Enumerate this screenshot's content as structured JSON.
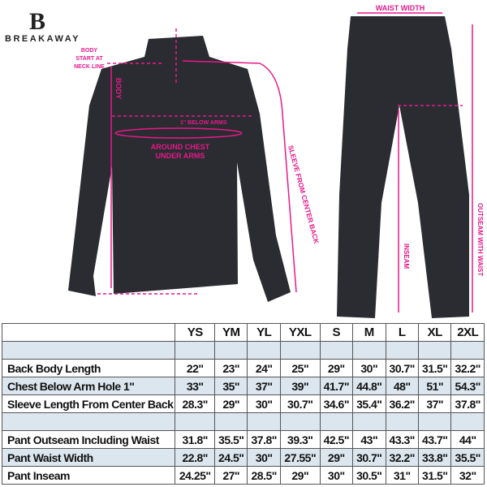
{
  "brand": "BREAKAWAY",
  "colors": {
    "accent": "#e6198a",
    "garment": "#2a2c31",
    "row_tint": "#dbe6ee"
  },
  "annotations": {
    "body_start": [
      "BODY",
      "START AT",
      "NECK LINE"
    ],
    "body": "BODY",
    "below_arms": "1\" BELOW ARMS",
    "chest": [
      "AROUND CHEST",
      "UNDER ARMS"
    ],
    "sleeve": "SLEEVE FROM CENTER BACK",
    "waist": "WAIST WIDTH",
    "inseam": "INSEAM",
    "outseam": "OUTSEAM WITH WAIST"
  },
  "table": {
    "sizes": [
      "YS",
      "YM",
      "YL",
      "YXL",
      "S",
      "M",
      "L",
      "XL",
      "2XL"
    ],
    "rows": [
      {
        "label": "Back Body Length",
        "values": [
          "22\"",
          "23\"",
          "24\"",
          "25\"",
          "29\"",
          "30\"",
          "30.7\"",
          "31.5\"",
          "32.2\""
        ]
      },
      {
        "label": "Chest Below Arm Hole 1\"",
        "values": [
          "33\"",
          "35\"",
          "37\"",
          "39\"",
          "41.7\"",
          "44.8\"",
          "48\"",
          "51\"",
          "54.3\""
        ]
      },
      {
        "label": "Sleeve Length From Center Back",
        "values": [
          "28.3\"",
          "29\"",
          "30\"",
          "30.7\"",
          "34.6\"",
          "35.4\"",
          "36.2\"",
          "37\"",
          "37.8\""
        ]
      },
      {
        "label": "Pant Outseam Including Waist",
        "values": [
          "31.8\"",
          "35.5\"",
          "37.8\"",
          "39.3\"",
          "42.5\"",
          "43\"",
          "43.3\"",
          "43.7\"",
          "44\""
        ]
      },
      {
        "label": "Pant Waist Width",
        "values": [
          "22.8\"",
          "24.5\"",
          "30\"",
          "27.55\"",
          "29\"",
          "30.7\"",
          "32.2\"",
          "33.8\"",
          "35.5\""
        ]
      },
      {
        "label": "Pant Inseam",
        "values": [
          "24.25\"",
          "27\"",
          "28.5\"",
          "29\"",
          "30\"",
          "30.5\"",
          "31\"",
          "31.5\"",
          "32\""
        ]
      }
    ]
  }
}
